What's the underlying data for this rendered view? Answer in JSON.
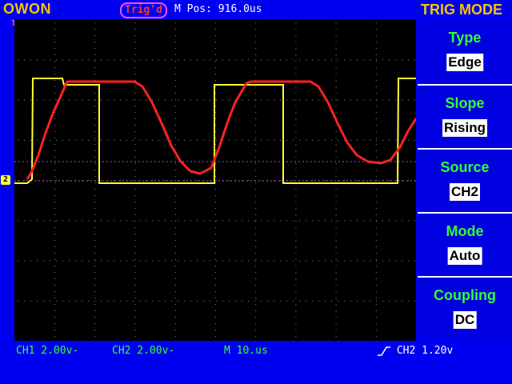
{
  "header": {
    "brand": "OWON",
    "trig_status": "Trig'd",
    "m_pos": "M Pos: 916.0us",
    "menu_title": "TRIG MODE"
  },
  "menu": {
    "items": [
      {
        "label": "Type",
        "value": "Edge"
      },
      {
        "label": "Slope",
        "value": "Rising"
      },
      {
        "label": "Source",
        "value": "CH2"
      },
      {
        "label": "Mode",
        "value": "Auto"
      },
      {
        "label": "Coupling",
        "value": "DC"
      }
    ]
  },
  "status": {
    "ch1": "CH1 2.00v-",
    "ch2": "CH2 2.00v-",
    "timebase": "M 10.us",
    "trigger": "CH2 1.20v"
  },
  "markers": {
    "trigger_pos": "T",
    "ch2_level": "2",
    "trigger_level": "◆"
  },
  "colors": {
    "ch1": "#ffff33",
    "ch2": "#ff2222",
    "frame": "#0000f0",
    "menu_label": "#33ff33",
    "brand": "#f4c400"
  }
}
